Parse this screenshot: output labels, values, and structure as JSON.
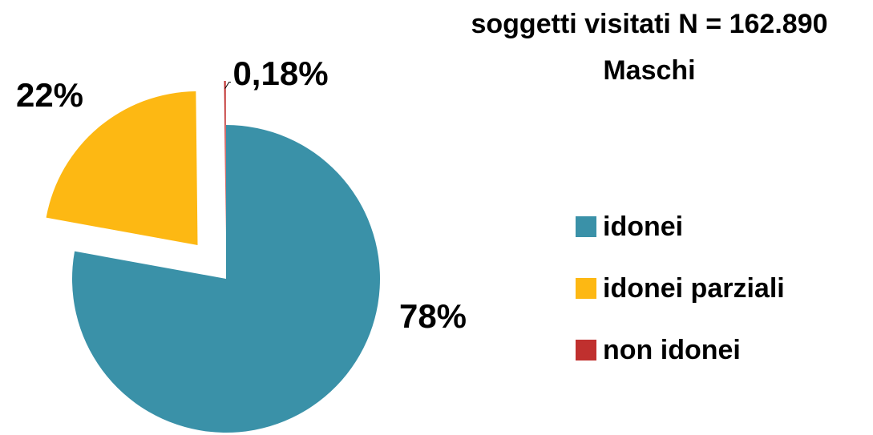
{
  "chart_data": {
    "type": "pie",
    "title": "soggetti visitati N = 162.890",
    "subtitle": "Maschi",
    "categories": [
      "idonei",
      "idonei parziali",
      "non idonei"
    ],
    "values": [
      78,
      22,
      0.18
    ],
    "value_labels": [
      "78%",
      "22%",
      "0,18%"
    ],
    "colors": [
      "#3a91a8",
      "#fdb813",
      "#c0302e"
    ],
    "legend": "right"
  }
}
